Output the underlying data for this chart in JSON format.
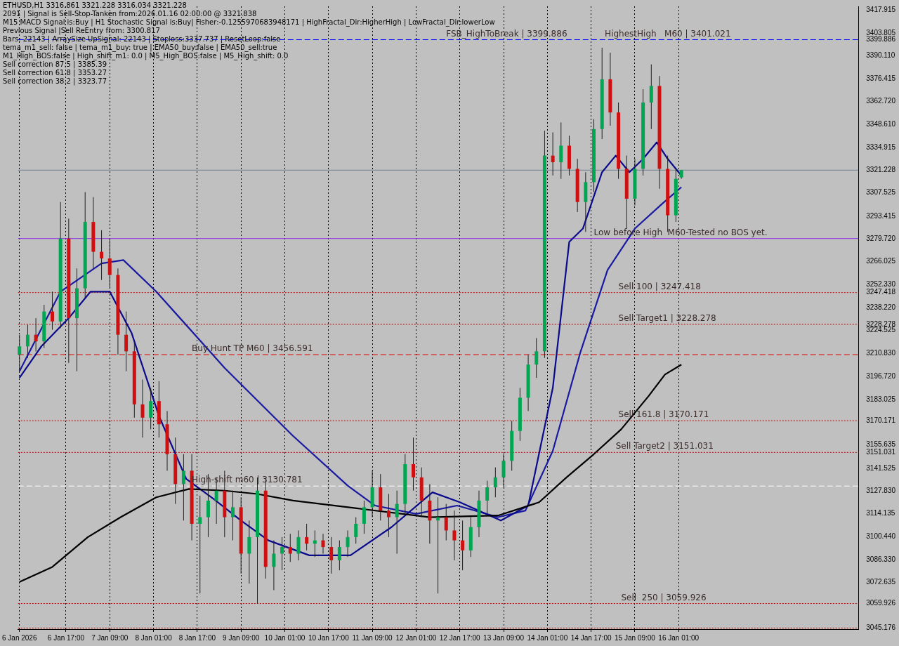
{
  "chart_data": {
    "type": "candlestick",
    "x": [
      "2026-01-06T00:00",
      "2026-01-06T03:00",
      "2026-01-06T06:00",
      "2026-01-06T09:00",
      "2026-01-06T12:00",
      "2026-01-06T15:00",
      "2026-01-06T18:00",
      "2026-01-06T21:00",
      "2026-01-07T00:00",
      "2026-01-07T03:00",
      "2026-01-07T06:00",
      "2026-01-07T09:00",
      "2026-01-07T12:00",
      "2026-01-07T15:00",
      "2026-01-07T18:00",
      "2026-01-07T21:00",
      "2026-01-08T00:00",
      "2026-01-08T03:00",
      "2026-01-08T06:00",
      "2026-01-08T09:00",
      "2026-01-08T12:00",
      "2026-01-08T15:00",
      "2026-01-08T18:00",
      "2026-01-08T21:00",
      "2026-01-09T00:00",
      "2026-01-09T03:00",
      "2026-01-09T06:00",
      "2026-01-09T09:00",
      "2026-01-09T12:00",
      "2026-01-09T15:00",
      "2026-01-09T18:00",
      "2026-01-09T21:00",
      "2026-01-10T00:00",
      "2026-01-10T03:00",
      "2026-01-10T06:00",
      "2026-01-10T09:00",
      "2026-01-10T12:00",
      "2026-01-10T15:00",
      "2026-01-10T18:00",
      "2026-01-10T21:00",
      "2026-01-11T00:00",
      "2026-01-11T03:00",
      "2026-01-11T06:00",
      "2026-01-11T09:00",
      "2026-01-11T12:00",
      "2026-01-11T15:00",
      "2026-01-11T18:00",
      "2026-01-11T21:00",
      "2026-01-12T00:00",
      "2026-01-12T03:00",
      "2026-01-12T06:00",
      "2026-01-12T09:00",
      "2026-01-12T12:00",
      "2026-01-12T15:00",
      "2026-01-12T18:00",
      "2026-01-12T21:00",
      "2026-01-13T00:00",
      "2026-01-13T03:00",
      "2026-01-13T06:00",
      "2026-01-13T09:00",
      "2026-01-13T12:00",
      "2026-01-13T15:00",
      "2026-01-13T18:00",
      "2026-01-13T21:00",
      "2026-01-14T00:00",
      "2026-01-14T03:00",
      "2026-01-14T06:00",
      "2026-01-14T09:00",
      "2026-01-14T12:00",
      "2026-01-14T15:00",
      "2026-01-14T18:00",
      "2026-01-14T21:00",
      "2026-01-15T00:00",
      "2026-01-15T03:00",
      "2026-01-15T06:00",
      "2026-01-15T09:00",
      "2026-01-15T12:00",
      "2026-01-15T15:00",
      "2026-01-15T18:00",
      "2026-01-15T21:00",
      "2026-01-16T00:00",
      "2026-01-16T02:00"
    ],
    "ohlc": [
      [
        3210,
        3222,
        3200,
        3215
      ],
      [
        3215,
        3228,
        3208,
        3222
      ],
      [
        3222,
        3232,
        3212,
        3218
      ],
      [
        3218,
        3240,
        3214,
        3236
      ],
      [
        3236,
        3248,
        3225,
        3230
      ],
      [
        3230,
        3302,
        3226,
        3280
      ],
      [
        3280,
        3292,
        3205,
        3232
      ],
      [
        3232,
        3262,
        3200,
        3250
      ],
      [
        3250,
        3308,
        3244,
        3290
      ],
      [
        3290,
        3305,
        3262,
        3272
      ],
      [
        3272,
        3285,
        3255,
        3268
      ],
      [
        3268,
        3280,
        3250,
        3258
      ],
      [
        3258,
        3262,
        3210,
        3222
      ],
      [
        3222,
        3236,
        3200,
        3212
      ],
      [
        3212,
        3218,
        3172,
        3180
      ],
      [
        3180,
        3195,
        3160,
        3172
      ],
      [
        3172,
        3190,
        3165,
        3182
      ],
      [
        3182,
        3194,
        3160,
        3168
      ],
      [
        3168,
        3176,
        3140,
        3150
      ],
      [
        3150,
        3160,
        3120,
        3132
      ],
      [
        3132,
        3150,
        3110,
        3140
      ],
      [
        3140,
        3150,
        3098,
        3108
      ],
      [
        3108,
        3125,
        3066,
        3112
      ],
      [
        3112,
        3138,
        3100,
        3122
      ],
      [
        3122,
        3136,
        3108,
        3128
      ],
      [
        3128,
        3140,
        3100,
        3112
      ],
      [
        3112,
        3128,
        3098,
        3118
      ],
      [
        3118,
        3124,
        3078,
        3090
      ],
      [
        3090,
        3110,
        3072,
        3100
      ],
      [
        3100,
        3136,
        3060,
        3128
      ],
      [
        3128,
        3135,
        3075,
        3082
      ],
      [
        3082,
        3098,
        3068,
        3090
      ],
      [
        3090,
        3100,
        3080,
        3094
      ],
      [
        3094,
        3102,
        3085,
        3090
      ],
      [
        3090,
        3104,
        3086,
        3100
      ],
      [
        3100,
        3108,
        3092,
        3096
      ],
      [
        3096,
        3104,
        3088,
        3098
      ],
      [
        3098,
        3102,
        3090,
        3094
      ],
      [
        3094,
        3100,
        3078,
        3086
      ],
      [
        3086,
        3098,
        3080,
        3094
      ],
      [
        3094,
        3104,
        3088,
        3100
      ],
      [
        3100,
        3112,
        3096,
        3108
      ],
      [
        3108,
        3122,
        3102,
        3118
      ],
      [
        3118,
        3140,
        3112,
        3130
      ],
      [
        3130,
        3138,
        3110,
        3116
      ],
      [
        3116,
        3126,
        3100,
        3112
      ],
      [
        3112,
        3128,
        3090,
        3120
      ],
      [
        3120,
        3150,
        3114,
        3144
      ],
      [
        3144,
        3160,
        3128,
        3136
      ],
      [
        3136,
        3142,
        3112,
        3122
      ],
      [
        3122,
        3132,
        3096,
        3110
      ],
      [
        3110,
        3124,
        3066,
        3112
      ],
      [
        3112,
        3120,
        3098,
        3104
      ],
      [
        3104,
        3116,
        3086,
        3098
      ],
      [
        3098,
        3110,
        3080,
        3092
      ],
      [
        3092,
        3112,
        3088,
        3106
      ],
      [
        3106,
        3128,
        3100,
        3122
      ],
      [
        3122,
        3134,
        3114,
        3130
      ],
      [
        3130,
        3142,
        3124,
        3136
      ],
      [
        3136,
        3150,
        3130,
        3146
      ],
      [
        3146,
        3170,
        3140,
        3164
      ],
      [
        3164,
        3190,
        3158,
        3184
      ],
      [
        3184,
        3210,
        3176,
        3204
      ],
      [
        3204,
        3220,
        3196,
        3212
      ],
      [
        3212,
        3345,
        3208,
        3330
      ],
      [
        3330,
        3344,
        3318,
        3326
      ],
      [
        3326,
        3350,
        3316,
        3336
      ],
      [
        3336,
        3342,
        3318,
        3322
      ],
      [
        3322,
        3328,
        3296,
        3302
      ],
      [
        3302,
        3320,
        3284,
        3314
      ],
      [
        3314,
        3352,
        3308,
        3346
      ],
      [
        3346,
        3395,
        3340,
        3376
      ],
      [
        3376,
        3392,
        3348,
        3356
      ],
      [
        3356,
        3362,
        3316,
        3322
      ],
      [
        3322,
        3330,
        3286,
        3304
      ],
      [
        3304,
        3328,
        3300,
        3322
      ],
      [
        3322,
        3370,
        3318,
        3362
      ],
      [
        3362,
        3385,
        3346,
        3372
      ],
      [
        3372,
        3378,
        3310,
        3322
      ],
      [
        3322,
        3330,
        3284,
        3294
      ],
      [
        3294,
        3322,
        3290,
        3316
      ],
      [
        3316.861,
        3321.228,
        3316.034,
        3321.228
      ]
    ],
    "colors": [
      "#00a651",
      "#00a651",
      "#d01010",
      "#00a651",
      "#d01010",
      "#00a651",
      "#d01010",
      "#00a651",
      "#00a651",
      "#d01010",
      "#d01010",
      "#d01010",
      "#d01010",
      "#d01010",
      "#d01010",
      "#d01010",
      "#00a651",
      "#d01010",
      "#d01010",
      "#d01010",
      "#00a651",
      "#d01010",
      "#00a651",
      "#00a651",
      "#00a651",
      "#d01010",
      "#00a651",
      "#d01010",
      "#00a651",
      "#00a651",
      "#d01010",
      "#00a651",
      "#00a651",
      "#d01010",
      "#00a651",
      "#d01010",
      "#00a651",
      "#d01010",
      "#d01010",
      "#00a651",
      "#00a651",
      "#00a651",
      "#00a651",
      "#00a651",
      "#d01010",
      "#d01010",
      "#00a651",
      "#00a651",
      "#d01010",
      "#d01010",
      "#d01010",
      "#00a651",
      "#d01010",
      "#d01010",
      "#d01010",
      "#00a651",
      "#00a651",
      "#00a651",
      "#00a651",
      "#00a651",
      "#00a651",
      "#00a651",
      "#00a651",
      "#00a651",
      "#00a651",
      "#d01010",
      "#00a651",
      "#d01010",
      "#d01010",
      "#00a651",
      "#00a651",
      "#00a651",
      "#d01010",
      "#d01010",
      "#d01010",
      "#00a651",
      "#00a651",
      "#00a651",
      "#d01010",
      "#d01010",
      "#00a651",
      "#00a651"
    ],
    "series": [
      {
        "type": "line",
        "color": "#000000",
        "x": [
          "2026-01-06T00:00",
          "2026-01-06T12:00",
          "2026-01-07T01:00",
          "2026-01-07T13:00",
          "2026-01-08T02:00",
          "2026-01-08T14:00",
          "2026-01-09T03:00",
          "2026-01-09T15:00",
          "2026-01-10T04:00",
          "2026-01-11T05:00",
          "2026-01-12T06:00",
          "2026-01-13T07:00",
          "2026-01-13T22:00",
          "2026-01-14T08:00",
          "2026-01-14T18:00",
          "2026-01-15T04:00",
          "2026-01-15T14:00",
          "2026-01-15T20:00",
          "2026-01-16T02:00"
        ],
        "values": [
          3073,
          3082,
          3100,
          3112,
          3124,
          3129,
          3128,
          3126,
          3122,
          3117,
          3112,
          3113,
          3121,
          3136,
          3150,
          3165,
          3185,
          3198,
          3204
        ]
      },
      {
        "type": "line",
        "color": "#0a0a8c",
        "x": [
          "2026-01-06T00:00",
          "2026-01-06T08:00",
          "2026-01-06T18:00",
          "2026-01-07T02:00",
          "2026-01-07T09:00",
          "2026-01-07T17:00",
          "2026-01-08T03:00",
          "2026-01-08T13:00",
          "2026-01-08T23:00",
          "2026-01-09T09:00",
          "2026-01-09T19:00",
          "2026-01-10T10:00",
          "2026-01-11T01:00",
          "2026-01-11T16:00",
          "2026-01-12T07:00",
          "2026-01-12T17:00",
          "2026-01-13T08:00",
          "2026-01-13T18:00",
          "2026-01-14T03:00",
          "2026-01-14T09:00",
          "2026-01-14T14:00",
          "2026-01-14T21:00",
          "2026-01-15T02:00",
          "2026-01-15T07:00",
          "2026-01-15T12:00",
          "2026-01-15T17:00",
          "2026-01-15T21:00",
          "2026-01-16T02:00"
        ],
        "values": [
          3196,
          3215,
          3232,
          3248,
          3248,
          3223,
          3173,
          3135,
          3123,
          3110,
          3098,
          3089,
          3089,
          3106,
          3127,
          3121,
          3110,
          3119,
          3190,
          3278,
          3286,
          3320,
          3330,
          3320,
          3328,
          3338,
          3328,
          3318
        ]
      },
      {
        "type": "line",
        "color": "#1a1aa0",
        "x": [
          "2026-01-06T00:00",
          "2026-01-06T15:00",
          "2026-01-07T06:00",
          "2026-01-07T14:00",
          "2026-01-08T02:00",
          "2026-01-09T03:00",
          "2026-01-10T04:00",
          "2026-01-11T00:00",
          "2026-01-11T10:00",
          "2026-01-12T01:00",
          "2026-01-12T16:00",
          "2026-01-13T07:00",
          "2026-01-13T17:00",
          "2026-01-14T03:00",
          "2026-01-14T13:00",
          "2026-01-14T23:00",
          "2026-01-15T09:00",
          "2026-01-15T19:00",
          "2026-01-16T02:00"
        ],
        "values": [
          3200,
          3248,
          3265,
          3267,
          3248,
          3202,
          3161,
          3131,
          3119,
          3114,
          3119,
          3112,
          3116,
          3152,
          3211,
          3261,
          3286,
          3301,
          3311
        ]
      }
    ],
    "xlim": [
      "2026-01-05T23:30",
      "2026-01-18T18:45"
    ],
    "xticks": [
      {
        "value": "2026-01-06T00:00",
        "label": "6 Jan 2026"
      },
      {
        "value": "2026-01-06T17:00",
        "label": "6 Jan 17:00"
      },
      {
        "value": "2026-01-07T09:00",
        "label": "7 Jan 09:00"
      },
      {
        "value": "2026-01-08T01:00",
        "label": "8 Jan 01:00"
      },
      {
        "value": "2026-01-08T17:00",
        "label": "8 Jan 17:00"
      },
      {
        "value": "2026-01-09T09:00",
        "label": "9 Jan 09:00"
      },
      {
        "value": "2026-01-10T01:00",
        "label": "10 Jan 01:00"
      },
      {
        "value": "2026-01-10T17:00",
        "label": "10 Jan 17:00"
      },
      {
        "value": "2026-01-11T09:00",
        "label": "11 Jan 09:00"
      },
      {
        "value": "2026-01-12T01:00",
        "label": "12 Jan 01:00"
      },
      {
        "value": "2026-01-12T17:00",
        "label": "12 Jan 17:00"
      },
      {
        "value": "2026-01-13T09:00",
        "label": "13 Jan 09:00"
      },
      {
        "value": "2026-01-14T01:00",
        "label": "14 Jan 01:00"
      },
      {
        "value": "2026-01-14T17:00",
        "label": "14 Jan 17:00"
      },
      {
        "value": "2026-01-15T09:00",
        "label": "15 Jan 09:00"
      },
      {
        "value": "2026-01-16T01:00",
        "label": "16 Jan 01:00"
      }
    ],
    "ylim": [
      3044.5,
      3420
    ],
    "yticks": [
      3417.915,
      3403.805,
      3399.886,
      {
        "value": 3390.11,
        "label": "3390.110"
      },
      3376.415,
      {
        "value": 3362.72,
        "label": "3362.720"
      },
      {
        "value": 3348.61,
        "label": "3348.610"
      },
      3334.915,
      3321.228,
      3307.525,
      3293.415,
      {
        "value": 3279.72,
        "label": "3279.720"
      },
      3266.025,
      {
        "value": 3252.33,
        "label": "3252.330"
      },
      3247.418,
      {
        "value": 3238.22,
        "label": "3238.220"
      },
      3228.278,
      3224.525,
      {
        "value": 3210.83,
        "label": "3210.830"
      },
      {
        "value": 3196.72,
        "label": "3196.720"
      },
      3183.025,
      3170.171,
      3155.635,
      3151.031,
      3141.525,
      {
        "value": 3127.83,
        "label": "3127.830"
      },
      3114.135,
      {
        "value": 3100.44,
        "label": "3100.440"
      },
      {
        "value": 3086.33,
        "label": "3086.330"
      },
      3072.635,
      3059.926,
      3045.176
    ],
    "grid": "x",
    "legend": false,
    "ref_lines": [
      {
        "axis": "y",
        "value": 3399.886,
        "color": "#0000ff",
        "line_style": "dashed"
      },
      {
        "axis": "y",
        "value": 3321.228,
        "color": "#708090",
        "line_style": "solid"
      },
      {
        "axis": "y",
        "value": 3247.418,
        "color": "#c00000",
        "line_style": "dotted"
      },
      {
        "axis": "y",
        "value": 3228.278,
        "color": "#c00000",
        "line_style": "dotted"
      },
      {
        "axis": "y",
        "value": 3210,
        "color": "#e00000",
        "line_style": "dashed"
      },
      {
        "axis": "y",
        "value": 3280,
        "color": "#8a2be2",
        "line_style": "solid"
      },
      {
        "axis": "y",
        "value": 3130.781,
        "color": "#ffffff",
        "line_style": "dashed"
      },
      {
        "axis": "y",
        "value": 3170.171,
        "color": "#c00000",
        "line_style": "dotted"
      },
      {
        "axis": "y",
        "value": 3151.031,
        "color": "#c00000",
        "line_style": "dotted"
      },
      {
        "axis": "y",
        "value": 3059.926,
        "color": "#c00000",
        "line_style": "dotted"
      },
      {
        "axis": "y",
        "value": 3045.176,
        "color": "#c00000",
        "line_style": "dotted"
      }
    ],
    "annotations": [
      "ETHUSD,H1  3316.861 3321.228 3316.034 3321.228",
      "2091 | Signal is Sell-Stop-Tanken from:2026.01.16 02:00:00 @ 3321.838",
      "M15 MACD Signal is:Buy | H1 Stochastic Signal is:Buy| Fisher:-0.1255970683948171 | HighFractal_Dir:HigherHigh | LowFractal_Dir:lowerLow",
      "Previous Signal |Sell ReEntry from: 3300.817",
      "Bars: 22143 | ArraySize UpSignal: 22143 | Stoploss:3337.737 | ResetLoop:false",
      "tema_m1_sell: false | tema_m1_buy: true | EMA50_buy:false | EMA50_sell:true",
      "M1_High_BOS:false | High_shift_m1: 0.0 | M5_High_BOS:false | M5_High_shift: 0.0",
      "Sell correction 87.5 | 3385.39",
      "Sell correction 61.8 | 3353.27",
      "Sell correction 38.2 | 3323.77",
      {
        "text": "FSB_HighToBreak | 3399.886",
        "x": "2026-01-12T12:00",
        "y": 3399.886
      },
      {
        "text": "HighestHigh   M60 | 3401.021",
        "x": "2026-01-14T22:00",
        "y": 3399.886
      },
      {
        "text": "Low before High  M60-Tested no BOS yet.",
        "x": "2026-01-14T18:00",
        "y": 3280
      },
      {
        "text": "Sell 100 | 3247.418",
        "x": "2026-01-15T03:00",
        "y": 3247.418
      },
      {
        "text": "Sell Target1 | 3228.278",
        "x": "2026-01-15T03:00",
        "y": 3228.278
      },
      {
        "text": "Buy Hunt TP M60 | 3456.591",
        "x": "2026-01-08T15:00",
        "y": 3210
      },
      {
        "text": "Sell 161.8 | 3170.171",
        "x": "2026-01-15T03:00",
        "y": 3170.171
      },
      {
        "text": "Sell Target2 | 3151.031",
        "x": "2026-01-15T02:00",
        "y": 3151.031
      },
      {
        "text": "High-shift m60 | 3130.781",
        "x": "2026-01-08T15:00",
        "y": 3130.781
      },
      {
        "text": "Sell  250 | 3059.926",
        "x": "2026-01-15T04:00",
        "y": 3059.926
      }
    ]
  }
}
